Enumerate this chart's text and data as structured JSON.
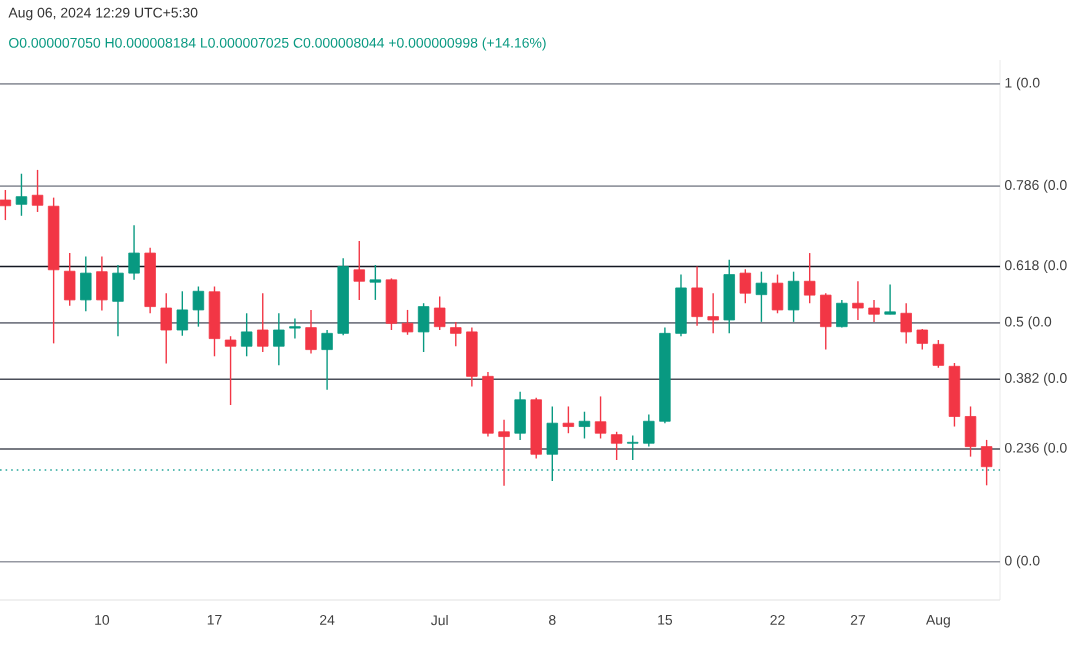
{
  "chart_data": {
    "type": "candlestick",
    "title": "Aug 06, 2024 12:29 UTC+5:30",
    "subtitle": "O0.000007050 H0.000008184 L0.000007025 C0.000008044 +0.000000998 (+14.16%)",
    "x": [
      "2024-06-04",
      "2024-06-05",
      "2024-06-06",
      "2024-06-07",
      "2024-06-08",
      "2024-06-09",
      "2024-06-10",
      "2024-06-11",
      "2024-06-12",
      "2024-06-13",
      "2024-06-14",
      "2024-06-15",
      "2024-06-16",
      "2024-06-17",
      "2024-06-18",
      "2024-06-19",
      "2024-06-20",
      "2024-06-21",
      "2024-06-22",
      "2024-06-23",
      "2024-06-24",
      "2024-06-25",
      "2024-06-26",
      "2024-06-27",
      "2024-06-28",
      "2024-06-29",
      "2024-06-30",
      "2024-07-01",
      "2024-07-02",
      "2024-07-03",
      "2024-07-04",
      "2024-07-05",
      "2024-07-06",
      "2024-07-07",
      "2024-07-08",
      "2024-07-09",
      "2024-07-10",
      "2024-07-11",
      "2024-07-12",
      "2024-07-13",
      "2024-07-14",
      "2024-07-15",
      "2024-07-16",
      "2024-07-17",
      "2024-07-18",
      "2024-07-19",
      "2024-07-20",
      "2024-07-21",
      "2024-07-22",
      "2024-07-23",
      "2024-07-24",
      "2024-07-25",
      "2024-07-26",
      "2024-07-27",
      "2024-07-28",
      "2024-07-29",
      "2024-07-30",
      "2024-07-31",
      "2024-08-01",
      "2024-08-02",
      "2024-08-03",
      "2024-08-04"
    ],
    "ohlc": [
      [
        0.757,
        0.778,
        0.715,
        0.745
      ],
      [
        0.748,
        0.812,
        0.724,
        0.764
      ],
      [
        0.767,
        0.82,
        0.732,
        0.746
      ],
      [
        0.744,
        0.762,
        0.457,
        0.611
      ],
      [
        0.608,
        0.646,
        0.536,
        0.548
      ],
      [
        0.548,
        0.639,
        0.524,
        0.604
      ],
      [
        0.607,
        0.639,
        0.526,
        0.548
      ],
      [
        0.545,
        0.621,
        0.472,
        0.604
      ],
      [
        0.604,
        0.704,
        0.59,
        0.646
      ],
      [
        0.646,
        0.657,
        0.52,
        0.534
      ],
      [
        0.531,
        0.562,
        0.415,
        0.485
      ],
      [
        0.485,
        0.566,
        0.473,
        0.527
      ],
      [
        0.527,
        0.576,
        0.492,
        0.566
      ],
      [
        0.565,
        0.576,
        0.43,
        0.467
      ],
      [
        0.464,
        0.472,
        0.328,
        0.451
      ],
      [
        0.451,
        0.52,
        0.43,
        0.481
      ],
      [
        0.485,
        0.562,
        0.439,
        0.451
      ],
      [
        0.451,
        0.52,
        0.411,
        0.485
      ],
      [
        0.489,
        0.509,
        0.467,
        0.492
      ],
      [
        0.49,
        0.527,
        0.436,
        0.444
      ],
      [
        0.444,
        0.485,
        0.36,
        0.478
      ],
      [
        0.478,
        0.635,
        0.474,
        0.618
      ],
      [
        0.611,
        0.671,
        0.548,
        0.587
      ],
      [
        0.585,
        0.621,
        0.548,
        0.59
      ],
      [
        0.59,
        0.593,
        0.485,
        0.499
      ],
      [
        0.499,
        0.527,
        0.475,
        0.481
      ],
      [
        0.481,
        0.541,
        0.439,
        0.534
      ],
      [
        0.531,
        0.555,
        0.485,
        0.492
      ],
      [
        0.49,
        0.502,
        0.451,
        0.478
      ],
      [
        0.481,
        0.49,
        0.367,
        0.388
      ],
      [
        0.388,
        0.397,
        0.262,
        0.269
      ],
      [
        0.272,
        0.297,
        0.159,
        0.262
      ],
      [
        0.269,
        0.356,
        0.255,
        0.339
      ],
      [
        0.339,
        0.343,
        0.216,
        0.225
      ],
      [
        0.225,
        0.325,
        0.169,
        0.29
      ],
      [
        0.29,
        0.325,
        0.269,
        0.283
      ],
      [
        0.283,
        0.314,
        0.258,
        0.294
      ],
      [
        0.293,
        0.346,
        0.258,
        0.269
      ],
      [
        0.266,
        0.272,
        0.213,
        0.248
      ],
      [
        0.248,
        0.264,
        0.213,
        0.25
      ],
      [
        0.248,
        0.308,
        0.241,
        0.294
      ],
      [
        0.294,
        0.49,
        0.29,
        0.478
      ],
      [
        0.478,
        0.601,
        0.472,
        0.573
      ],
      [
        0.573,
        0.618,
        0.494,
        0.513
      ],
      [
        0.513,
        0.562,
        0.478,
        0.506
      ],
      [
        0.506,
        0.632,
        0.478,
        0.601
      ],
      [
        0.604,
        0.612,
        0.541,
        0.562
      ],
      [
        0.559,
        0.607,
        0.502,
        0.583
      ],
      [
        0.583,
        0.601,
        0.52,
        0.527
      ],
      [
        0.527,
        0.607,
        0.502,
        0.587
      ],
      [
        0.587,
        0.646,
        0.541,
        0.558
      ],
      [
        0.558,
        0.562,
        0.444,
        0.492
      ],
      [
        0.492,
        0.548,
        0.49,
        0.541
      ],
      [
        0.541,
        0.587,
        0.506,
        0.531
      ],
      [
        0.531,
        0.548,
        0.502,
        0.518
      ],
      [
        0.518,
        0.58,
        0.518,
        0.523
      ],
      [
        0.52,
        0.541,
        0.457,
        0.481
      ],
      [
        0.485,
        0.487,
        0.444,
        0.457
      ],
      [
        0.455,
        0.464,
        0.406,
        0.411
      ],
      [
        0.409,
        0.416,
        0.283,
        0.304
      ],
      [
        0.304,
        0.325,
        0.22,
        0.241
      ],
      [
        0.241,
        0.255,
        0.16,
        0.199
      ]
    ],
    "colors": [
      "#f23645",
      "#089981",
      "#f23645",
      "#f23645",
      "#f23645",
      "#089981",
      "#f23645",
      "#089981",
      "#089981",
      "#f23645",
      "#f23645",
      "#089981",
      "#089981",
      "#f23645",
      "#f23645",
      "#089981",
      "#f23645",
      "#089981",
      "#089981",
      "#f23645",
      "#089981",
      "#089981",
      "#f23645",
      "#089981",
      "#f23645",
      "#f23645",
      "#089981",
      "#f23645",
      "#f23645",
      "#f23645",
      "#f23645",
      "#f23645",
      "#089981",
      "#f23645",
      "#089981",
      "#f23645",
      "#089981",
      "#f23645",
      "#f23645",
      "#089981",
      "#089981",
      "#089981",
      "#089981",
      "#f23645",
      "#f23645",
      "#089981",
      "#f23645",
      "#089981",
      "#f23645",
      "#089981",
      "#f23645",
      "#f23645",
      "#089981",
      "#f23645",
      "#f23645",
      "#089981",
      "#f23645",
      "#f23645",
      "#f23645",
      "#f23645",
      "#f23645",
      "#f23645"
    ],
    "xlim": [
      "2024-06-03T16:00",
      "2024-08-04T20:00"
    ],
    "xticks": [
      {
        "value": "2024-06-10",
        "label": "10"
      },
      {
        "value": "2024-06-17",
        "label": "17"
      },
      {
        "value": "2024-06-24",
        "label": "24"
      },
      {
        "value": "2024-07-01",
        "label": "Jul"
      },
      {
        "value": "2024-07-08",
        "label": "8"
      },
      {
        "value": "2024-07-15",
        "label": "15"
      },
      {
        "value": "2024-07-22",
        "label": "22"
      },
      {
        "value": "2024-07-27",
        "label": "27"
      },
      {
        "value": "2024-08-01",
        "label": "Aug"
      }
    ],
    "ylim": [
      -0.08,
      1.05
    ],
    "tick_labels": "x",
    "ref_lines": [
      {
        "axis": "y",
        "value": 1,
        "label": "1 (0.0",
        "color": "#9598a1"
      },
      {
        "axis": "y",
        "value": 0.786,
        "label": "0.786 (0.0",
        "color": "#9598a1"
      },
      {
        "axis": "y",
        "value": 0.618,
        "label": "0.618 (0.0",
        "color": "#131722"
      },
      {
        "axis": "y",
        "value": 0.5,
        "label": "0.5 (0.0",
        "color": "#787b86"
      },
      {
        "axis": "y",
        "value": 0.382,
        "label": "0.382 (0.0",
        "color": "#4a4e59"
      },
      {
        "axis": "y",
        "value": 0.236,
        "label": "0.236 (0.0",
        "color": "#4a4e59"
      },
      {
        "axis": "y",
        "value": 0,
        "label": "0 (0.0",
        "color": "#9598a1"
      },
      {
        "axis": "y",
        "value": 0.192,
        "color": "#26a69a",
        "line_style": "dotted"
      }
    ]
  }
}
